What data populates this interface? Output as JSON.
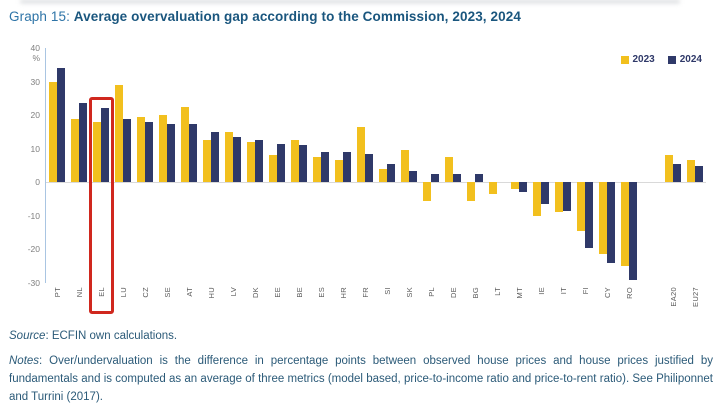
{
  "title": {
    "prefix": "Graph 15: ",
    "text": "Average overvaluation gap according to the Commission, 2023, 2024"
  },
  "chart_data": {
    "type": "bar",
    "title": "Average overvaluation gap according to the Commission, 2023, 2024",
    "ylabel": "%",
    "ylim": [
      -30,
      40
    ],
    "yticks": [
      40,
      30,
      20,
      10,
      0,
      -10,
      -20,
      -30
    ],
    "grid": false,
    "legend_position": "top-right",
    "categories": [
      "PT",
      "NL",
      "EL",
      "LU",
      "CZ",
      "SE",
      "AT",
      "HU",
      "LV",
      "DK",
      "EE",
      "BE",
      "ES",
      "HR",
      "FR",
      "SI",
      "SK",
      "PL",
      "DE",
      "BG",
      "LT",
      "MT",
      "IE",
      "IT",
      "FI",
      "CY",
      "RO",
      "EA20",
      "EU27"
    ],
    "series": [
      {
        "name": "2023",
        "values": [
          30,
          19,
          18,
          29,
          19.5,
          20,
          22.5,
          12.5,
          15,
          12,
          8,
          12.5,
          7.5,
          6.5,
          16.5,
          4,
          9.5,
          -5.5,
          7.5,
          -5.5,
          -3.5,
          -2,
          -10,
          -9,
          -14.5,
          -21.5,
          -25,
          8,
          6.5
        ]
      },
      {
        "name": "2024",
        "values": [
          34,
          23.5,
          22,
          19,
          18,
          17.5,
          17.5,
          15,
          13.5,
          12.5,
          11.5,
          11,
          9,
          9,
          8.5,
          5.5,
          3.5,
          2.5,
          2.5,
          2.5,
          0,
          -3,
          -6.5,
          -8.5,
          -19.5,
          -24,
          -29,
          5.5,
          5
        ]
      }
    ],
    "gap_before_category": "EA20",
    "highlight_category": "EL",
    "colors": {
      "series_2023": "#f2c01e",
      "series_2024": "#2f3969",
      "highlight_border": "#d0281e",
      "axis_line": "#a9c5e2",
      "zero_line": "#d9d9d9",
      "tick_text": "#7f7f7f",
      "category_text": "#595959"
    }
  },
  "source": {
    "label": "Source",
    "text": ": ECFIN own calculations."
  },
  "notes": {
    "label": "Notes",
    "text": ": Over/undervaluation is the difference in percentage points between observed house prices and house prices justified by fundamentals and is computed as an average of three metrics (model based, price-to-income ratio and price-to-rent ratio). See Philiponnet and Turrini (2017)."
  }
}
